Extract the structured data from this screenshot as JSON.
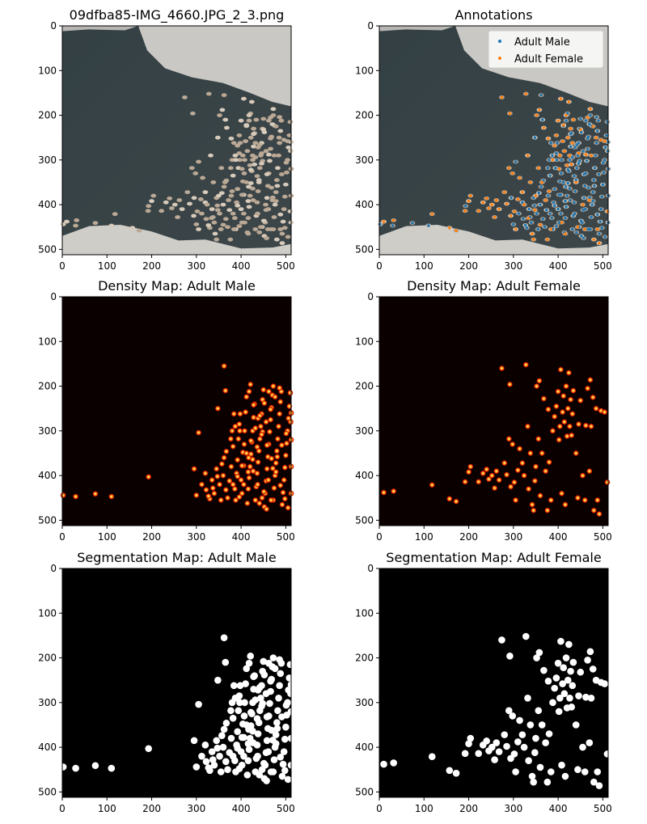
{
  "colors": {
    "male": "#1f77b4",
    "female": "#ff7f0e",
    "water": "#3a4347",
    "ice": "#c9c8c4",
    "heat_bg": "#0b0000",
    "seg_bg": "#000000"
  },
  "chart_data": [
    {
      "type": "image",
      "title": "09dfba85-IMG_4660.JPG_2_3.png",
      "xlim": [
        0,
        512
      ],
      "ylim": [
        512,
        0
      ],
      "xticks": [
        "0",
        "100",
        "200",
        "300",
        "400",
        "500"
      ],
      "yticks": [
        "0",
        "100",
        "200",
        "300",
        "400",
        "500"
      ]
    },
    {
      "type": "scatter",
      "title": "Annotations",
      "xlim": [
        0,
        512
      ],
      "ylim": [
        512,
        0
      ],
      "xticks": [
        "0",
        "100",
        "200",
        "300",
        "400",
        "500"
      ],
      "yticks": [
        "0",
        "100",
        "200",
        "300",
        "400",
        "500"
      ],
      "legend": "top-right",
      "series": [
        {
          "name": "Adult Male"
        },
        {
          "name": "Adult Female"
        }
      ]
    },
    {
      "type": "heatmap",
      "title": "Density Map: Adult Male",
      "xlim": [
        0,
        512
      ],
      "ylim": [
        512,
        0
      ],
      "xticks": [
        "0",
        "100",
        "200",
        "300",
        "400",
        "500"
      ],
      "yticks": [
        "0",
        "100",
        "200",
        "300",
        "400",
        "500"
      ]
    },
    {
      "type": "heatmap",
      "title": "Density Map: Adult Female",
      "xlim": [
        0,
        512
      ],
      "ylim": [
        512,
        0
      ],
      "xticks": [
        "0",
        "100",
        "200",
        "300",
        "400",
        "500"
      ],
      "yticks": [
        "0",
        "100",
        "200",
        "300",
        "400",
        "500"
      ]
    },
    {
      "type": "heatmap",
      "title": "Segmentation Map: Adult Male",
      "xlim": [
        0,
        512
      ],
      "ylim": [
        512,
        0
      ],
      "xticks": [
        "0",
        "100",
        "200",
        "300",
        "400",
        "500"
      ],
      "yticks": [
        "0",
        "100",
        "200",
        "300",
        "400",
        "500"
      ]
    },
    {
      "type": "heatmap",
      "title": "Segmentation Map: Adult Female",
      "xlim": [
        0,
        512
      ],
      "ylim": [
        512,
        0
      ],
      "xticks": [
        "0",
        "100",
        "200",
        "300",
        "400",
        "500"
      ],
      "yticks": [
        "0",
        "100",
        "200",
        "300",
        "400",
        "500"
      ]
    }
  ],
  "points": {
    "male": [
      [
        2,
        444
      ],
      [
        30,
        447
      ],
      [
        74,
        441
      ],
      [
        110,
        447
      ],
      [
        193,
        403
      ],
      [
        305,
        304
      ],
      [
        295,
        385
      ],
      [
        300,
        444
      ],
      [
        312,
        420
      ],
      [
        320,
        395
      ],
      [
        322,
        432
      ],
      [
        330,
        452
      ],
      [
        335,
        410
      ],
      [
        340,
        440
      ],
      [
        345,
        385
      ],
      [
        348,
        250
      ],
      [
        352,
        420
      ],
      [
        355,
        455
      ],
      [
        360,
        400
      ],
      [
        362,
        360
      ],
      [
        362,
        155
      ],
      [
        365,
        210
      ],
      [
        366,
        432
      ],
      [
        370,
        450
      ],
      [
        374,
        412
      ],
      [
        378,
        380
      ],
      [
        380,
        300
      ],
      [
        382,
        335
      ],
      [
        384,
        262
      ],
      [
        386,
        430
      ],
      [
        388,
        455
      ],
      [
        390,
        395
      ],
      [
        392,
        365
      ],
      [
        394,
        318
      ],
      [
        396,
        285
      ],
      [
        398,
        262
      ],
      [
        400,
        410
      ],
      [
        402,
        440
      ],
      [
        404,
        348
      ],
      [
        406,
        378
      ],
      [
        408,
        300
      ],
      [
        410,
        258
      ],
      [
        412,
        224
      ],
      [
        414,
        462
      ],
      [
        416,
        430
      ],
      [
        418,
        405
      ],
      [
        420,
        380
      ],
      [
        421,
        196
      ],
      [
        422,
        352
      ],
      [
        424,
        325
      ],
      [
        426,
        300
      ],
      [
        428,
        270
      ],
      [
        430,
        240
      ],
      [
        432,
        455
      ],
      [
        434,
        425
      ],
      [
        436,
        395
      ],
      [
        438,
        370
      ],
      [
        440,
        345
      ],
      [
        442,
        318
      ],
      [
        444,
        290
      ],
      [
        446,
        262
      ],
      [
        448,
        230
      ],
      [
        450,
        208
      ],
      [
        452,
        470
      ],
      [
        454,
        440
      ],
      [
        456,
        412
      ],
      [
        458,
        385
      ],
      [
        460,
        358
      ],
      [
        462,
        330
      ],
      [
        464,
        302
      ],
      [
        466,
        275
      ],
      [
        468,
        248
      ],
      [
        470,
        220
      ],
      [
        472,
        455
      ],
      [
        474,
        428
      ],
      [
        476,
        400
      ],
      [
        478,
        372
      ],
      [
        480,
        345
      ],
      [
        482,
        318
      ],
      [
        484,
        290
      ],
      [
        486,
        262
      ],
      [
        488,
        235
      ],
      [
        490,
        212
      ],
      [
        492,
        465
      ],
      [
        494,
        438
      ],
      [
        496,
        410
      ],
      [
        498,
        382
      ],
      [
        500,
        355
      ],
      [
        502,
        328
      ],
      [
        504,
        300
      ],
      [
        506,
        272
      ],
      [
        508,
        245
      ],
      [
        510,
        215
      ],
      [
        512,
        440
      ],
      [
        512,
        380
      ],
      [
        512,
        320
      ],
      [
        512,
        260
      ],
      [
        505,
        472
      ],
      [
        498,
        452
      ],
      [
        488,
        422
      ],
      [
        478,
        392
      ],
      [
        468,
        362
      ],
      [
        458,
        332
      ],
      [
        448,
        302
      ],
      [
        438,
        272
      ],
      [
        428,
        242
      ],
      [
        418,
        212
      ],
      [
        441,
        462
      ],
      [
        451,
        436
      ],
      [
        461,
        410
      ],
      [
        471,
        384
      ],
      [
        481,
        358
      ],
      [
        491,
        332
      ],
      [
        501,
        306
      ],
      [
        511,
        280
      ],
      [
        396,
        448
      ],
      [
        406,
        420
      ],
      [
        416,
        392
      ],
      [
        426,
        364
      ],
      [
        436,
        336
      ],
      [
        446,
        308
      ],
      [
        456,
        280
      ],
      [
        466,
        252
      ],
      [
        476,
        224
      ],
      [
        486,
        204
      ],
      [
        382,
        420
      ],
      [
        392,
        402
      ],
      [
        402,
        378
      ],
      [
        412,
        350
      ],
      [
        422,
        322
      ],
      [
        432,
        294
      ],
      [
        442,
        266
      ],
      [
        452,
        238
      ],
      [
        462,
        212
      ],
      [
        472,
        200
      ],
      [
        327,
        446
      ],
      [
        337,
        428
      ],
      [
        347,
        402
      ],
      [
        357,
        374
      ],
      [
        367,
        346
      ],
      [
        377,
        318
      ],
      [
        387,
        290
      ],
      [
        397,
        300
      ],
      [
        407,
        330
      ],
      [
        417,
        360
      ],
      [
        427,
        390
      ],
      [
        437,
        420
      ],
      [
        447,
        450
      ],
      [
        457,
        475
      ],
      [
        467,
        455
      ]
    ],
    "female": [
      [
        10,
        438
      ],
      [
        32,
        435
      ],
      [
        118,
        421
      ],
      [
        157,
        452
      ],
      [
        172,
        458
      ],
      [
        192,
        414
      ],
      [
        200,
        392
      ],
      [
        204,
        380
      ],
      [
        222,
        414
      ],
      [
        232,
        395
      ],
      [
        240,
        386
      ],
      [
        245,
        408
      ],
      [
        252,
        400
      ],
      [
        258,
        428
      ],
      [
        262,
        390
      ],
      [
        268,
        410
      ],
      [
        274,
        160
      ],
      [
        280,
        372
      ],
      [
        285,
        398
      ],
      [
        290,
        318
      ],
      [
        292,
        196
      ],
      [
        294,
        425
      ],
      [
        298,
        330
      ],
      [
        302,
        415
      ],
      [
        305,
        455
      ],
      [
        310,
        388
      ],
      [
        314,
        340
      ],
      [
        320,
        372
      ],
      [
        324,
        400
      ],
      [
        328,
        152
      ],
      [
        332,
        290
      ],
      [
        334,
        430
      ],
      [
        338,
        350
      ],
      [
        342,
        465
      ],
      [
        345,
        478
      ],
      [
        348,
        412
      ],
      [
        350,
        380
      ],
      [
        352,
        200
      ],
      [
        356,
        318
      ],
      [
        358,
        188
      ],
      [
        360,
        445
      ],
      [
        364,
        350
      ],
      [
        368,
        228
      ],
      [
        372,
        390
      ],
      [
        376,
        478
      ],
      [
        378,
        252
      ],
      [
        380,
        370
      ],
      [
        384,
        455
      ],
      [
        388,
        300
      ],
      [
        392,
        268
      ],
      [
        396,
        245
      ],
      [
        400,
        212
      ],
      [
        402,
        320
      ],
      [
        404,
        290
      ],
      [
        406,
        163
      ],
      [
        408,
        440
      ],
      [
        410,
        258
      ],
      [
        412,
        222
      ],
      [
        414,
        280
      ],
      [
        416,
        465
      ],
      [
        418,
        200
      ],
      [
        420,
        312
      ],
      [
        422,
        250
      ],
      [
        424,
        170
      ],
      [
        426,
        290
      ],
      [
        428,
        230
      ],
      [
        430,
        310
      ],
      [
        432,
        262
      ],
      [
        434,
        210
      ],
      [
        440,
        350
      ],
      [
        444,
        450
      ],
      [
        446,
        285
      ],
      [
        450,
        232
      ],
      [
        455,
        400
      ],
      [
        460,
        455
      ],
      [
        462,
        288
      ],
      [
        466,
        205
      ],
      [
        470,
        390
      ],
      [
        472,
        186
      ],
      [
        474,
        290
      ],
      [
        478,
        225
      ],
      [
        480,
        478
      ],
      [
        485,
        250
      ],
      [
        488,
        455
      ],
      [
        492,
        486
      ],
      [
        496,
        255
      ],
      [
        504,
        258
      ],
      [
        510,
        415
      ]
    ]
  }
}
